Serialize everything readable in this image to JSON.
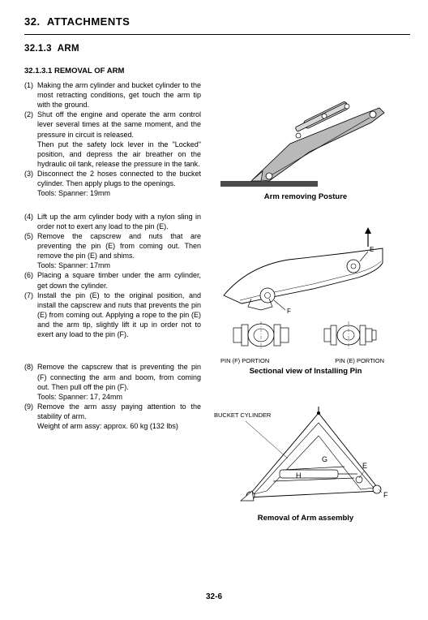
{
  "chapter": {
    "number": "32.",
    "title": "ATTACHMENTS"
  },
  "section": {
    "number": "32.1.3",
    "title": "ARM"
  },
  "subsection": {
    "number": "32.1.3.1",
    "title": "REMOVAL OF ARM"
  },
  "steps": [
    {
      "n": "(1)",
      "lines": [
        "Making the arm cylinder and bucket cylinder to the most retracting conditions, get touch the arm tip with the ground."
      ]
    },
    {
      "n": "(2)",
      "lines": [
        "Shut off the engine and operate the arm control lever several times at the same moment, and the pressure in circuit is released.",
        "Then put the safety lock lever in the \"Locked\" position, and depress the air breather on the hydraulic oil tank, release the pressure in the tank."
      ]
    },
    {
      "n": "(3)",
      "lines": [
        "Disconnect the 2 hoses connected to the bucket cylinder. Then apply plugs to the openings."
      ],
      "tools": "Tools: Spanner: 19mm",
      "gap_after": true
    },
    {
      "n": "(4)",
      "lines": [
        "Lift up the arm cylinder body with a nylon sling in order not to exert any load to the pin (E)."
      ]
    },
    {
      "n": "(5)",
      "lines": [
        "Remove the capscrew and nuts that are preventing the pin (E) from coming out. Then remove the pin (E) and shims."
      ],
      "tools": "Tools: Spanner: 17mm"
    },
    {
      "n": "(6)",
      "lines": [
        "Placing a square timber under the arm cylinder, get down the cylinder."
      ]
    },
    {
      "n": "(7)",
      "lines": [
        "Install the pin (E) to the original position, and install the capscrew and nuts that prevents the pin (E) from coming out. Applying a rope to the pin (E) and the arm tip, slightly lift it up in order not to exert any load to the pin (F)."
      ],
      "gap_after_lg": true
    },
    {
      "n": "(8)",
      "lines": [
        "Remove the capscrew that is preventing the pin (F) connecting the arm and boom, from coming out. Then pull off the pin (F)."
      ],
      "tools": "Tools: Spanner: 17, 24mm"
    },
    {
      "n": "(9)",
      "lines": [
        "Remove the arm assy paying attention to the stability of arm."
      ],
      "extra": "Weight of arm assy: approx. 60 kg (132 lbs)"
    }
  ],
  "figures": {
    "fig1": {
      "caption": "Arm removing Posture",
      "colors": {
        "fill": "#b9b9b9",
        "fill2": "#d6d6d6",
        "stroke": "#000000",
        "ground": "#4a4a4a"
      }
    },
    "fig2": {
      "caption": "Sectional view of Installing Pin",
      "pin_f_label": "PIN (F) PORTION",
      "pin_e_label": "PIN (E) PORTION",
      "letters": {
        "E": "E",
        "F": "F"
      },
      "colors": {
        "stroke": "#000000",
        "fill": "#ffffff"
      }
    },
    "fig3": {
      "caption": "Removal of Arm assembly",
      "bucket_label": "BUCKET CYLINDER",
      "letters": {
        "G": "G",
        "H": "H",
        "E": "E",
        "F": "F"
      },
      "colors": {
        "stroke": "#000000",
        "fill": "#ffffff"
      }
    }
  },
  "page_number": "32-6"
}
